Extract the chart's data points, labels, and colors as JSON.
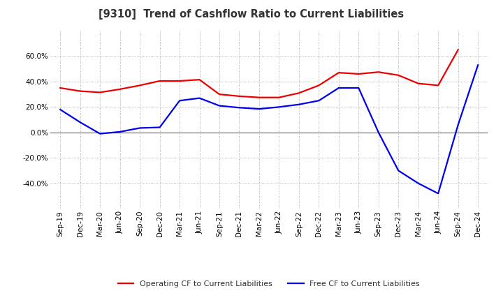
{
  "title": "[9310]  Trend of Cashflow Ratio to Current Liabilities",
  "x_labels": [
    "Sep-19",
    "Dec-19",
    "Mar-20",
    "Jun-20",
    "Sep-20",
    "Dec-20",
    "Mar-21",
    "Jun-21",
    "Sep-21",
    "Dec-21",
    "Mar-22",
    "Jun-22",
    "Sep-22",
    "Dec-22",
    "Mar-23",
    "Jun-23",
    "Sep-23",
    "Dec-23",
    "Mar-24",
    "Jun-24",
    "Sep-24",
    "Dec-24"
  ],
  "operating_cf": [
    35.0,
    32.5,
    31.5,
    34.0,
    37.0,
    40.5,
    40.5,
    41.5,
    30.0,
    28.5,
    27.5,
    27.5,
    31.0,
    37.0,
    47.0,
    46.0,
    47.5,
    45.0,
    38.5,
    37.0,
    65.0,
    null
  ],
  "free_cf": [
    18.0,
    8.0,
    -1.0,
    0.5,
    3.5,
    4.0,
    25.0,
    27.0,
    21.0,
    19.5,
    18.5,
    20.0,
    22.0,
    25.0,
    35.0,
    35.0,
    0.0,
    -30.0,
    -40.0,
    -48.0,
    6.0,
    53.0
  ],
  "operating_color": "#ee0000",
  "free_color": "#0000ee",
  "background_color": "#ffffff",
  "grid_color": "#999999",
  "ylim": [
    -60,
    80
  ],
  "yticks": [
    -40,
    -20,
    0,
    20,
    40,
    60
  ],
  "legend_labels": [
    "Operating CF to Current Liabilities",
    "Free CF to Current Liabilities"
  ]
}
